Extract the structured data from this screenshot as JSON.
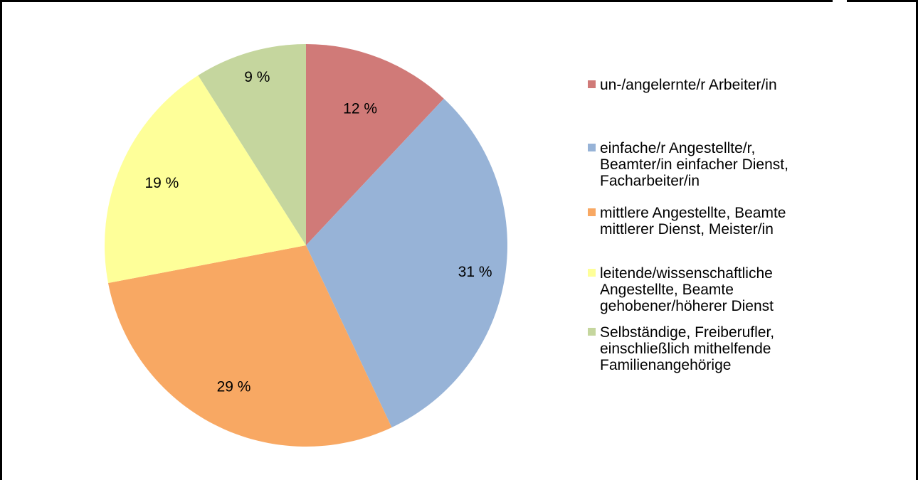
{
  "chart_data": {
    "type": "pie",
    "title": "",
    "categories": [
      "un-/angelernte/r Arbeiter/in",
      "einfache/r Angestellte/r,\nBeamter/in einfacher Dienst,\nFacharbeiter/in",
      "mittlere Angestellte, Beamte\nmittlerer Dienst, Meister/in",
      "leitende/wissenschaftliche\nAngestellte, Beamte\ngehobener/höherer Dienst",
      "Selbständige, Freiberufler,\neinschließlich mithelfende\nFamilienangehörige"
    ],
    "values": [
      12,
      31,
      29,
      19,
      9
    ],
    "data_labels": [
      "12 %",
      "31 %",
      "29 %",
      "19 %",
      "9 %"
    ],
    "colors": [
      "#d07a78",
      "#97b3d7",
      "#f8a863",
      "#feff99",
      "#c5d69e"
    ],
    "start_angle_deg": 0,
    "direction": "clockwise",
    "legend_position": "right"
  }
}
